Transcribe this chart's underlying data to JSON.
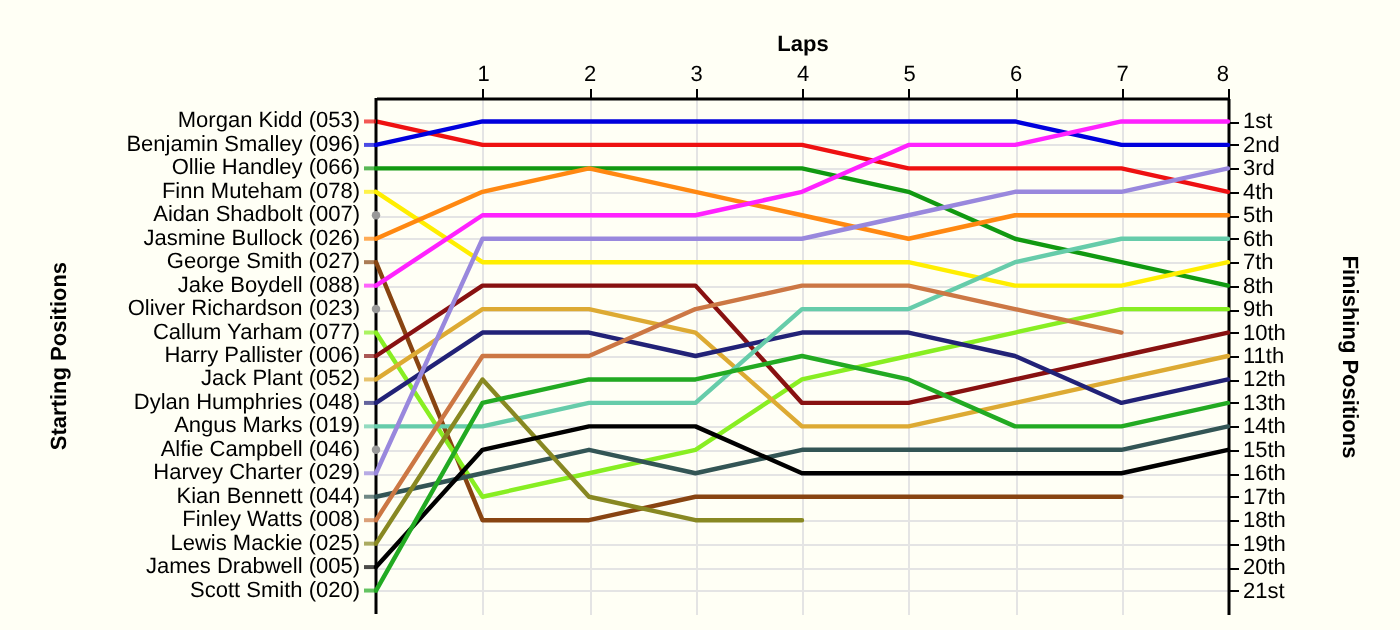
{
  "chart_data": {
    "type": "line",
    "xlabel": "Laps",
    "ylabel": "Finishing Positions",
    "annotations": [
      "Starting Positions"
    ],
    "x": [
      0,
      1,
      2,
      3,
      4,
      5,
      6,
      7,
      8
    ],
    "xlim": [
      0,
      8
    ],
    "xticks": [
      1,
      2,
      3,
      4,
      5,
      6,
      7,
      8
    ],
    "ylim": [
      22,
      0
    ],
    "yticks": [
      {
        "value": 1,
        "label": "1st"
      },
      {
        "value": 2,
        "label": "2nd"
      },
      {
        "value": 3,
        "label": "3rd"
      },
      {
        "value": 4,
        "label": "4th"
      },
      {
        "value": 5,
        "label": "5th"
      },
      {
        "value": 6,
        "label": "6th"
      },
      {
        "value": 7,
        "label": "7th"
      },
      {
        "value": 8,
        "label": "8th"
      },
      {
        "value": 9,
        "label": "9th"
      },
      {
        "value": 10,
        "label": "10th"
      },
      {
        "value": 11,
        "label": "11th"
      },
      {
        "value": 12,
        "label": "12th"
      },
      {
        "value": 13,
        "label": "13th"
      },
      {
        "value": 14,
        "label": "14th"
      },
      {
        "value": 15,
        "label": "15th"
      },
      {
        "value": 16,
        "label": "16th"
      },
      {
        "value": 17,
        "label": "17th"
      },
      {
        "value": 18,
        "label": "18th"
      },
      {
        "value": 19,
        "label": "19th"
      },
      {
        "value": 20,
        "label": "20th"
      },
      {
        "value": 21,
        "label": "21st"
      }
    ],
    "grid": true,
    "legend": "left",
    "series": [
      {
        "name": "Morgan Kidd (053)",
        "color": "#ee1111",
        "values": [
          1,
          2,
          2,
          2,
          2,
          3,
          3,
          3,
          4
        ]
      },
      {
        "name": "Benjamin Smalley (096)",
        "color": "#0000dd",
        "values": [
          2,
          1,
          1,
          1,
          1,
          1,
          1,
          2,
          2
        ]
      },
      {
        "name": "Ollie Handley (066)",
        "color": "#119911",
        "values": [
          3,
          3,
          3,
          3,
          3,
          4,
          6,
          7,
          8
        ]
      },
      {
        "name": "Finn Muteham (078)",
        "color": "#ffee00",
        "values": [
          4,
          7,
          7,
          7,
          7,
          7,
          8,
          8,
          7
        ]
      },
      {
        "name": "Aidan Shadbolt (007)",
        "color": "#999999",
        "marker": "circle",
        "values": [
          5,
          null,
          null,
          null,
          null,
          null,
          null,
          null,
          null
        ]
      },
      {
        "name": "Jasmine Bullock (026)",
        "color": "#ff8811",
        "values": [
          6,
          4,
          3,
          4,
          5,
          6,
          5,
          5,
          5
        ]
      },
      {
        "name": "George Smith (027)",
        "color": "#884411",
        "values": [
          7,
          18,
          18,
          17,
          17,
          17,
          17,
          17,
          null
        ]
      },
      {
        "name": "Jake Boydell (088)",
        "color": "#ff22ff",
        "values": [
          8,
          5,
          5,
          5,
          4,
          2,
          2,
          1,
          1
        ]
      },
      {
        "name": "Oliver Richardson (023)",
        "color": "#999999",
        "marker": "circle",
        "values": [
          9,
          null,
          null,
          null,
          null,
          null,
          null,
          null,
          null
        ]
      },
      {
        "name": "Callum Yarham (077)",
        "color": "#88ee22",
        "values": [
          10,
          17,
          16,
          15,
          12,
          11,
          10,
          9,
          9
        ]
      },
      {
        "name": "Harry Pallister (006)",
        "color": "#881111",
        "values": [
          11,
          8,
          8,
          8,
          13,
          13,
          12,
          11,
          10
        ]
      },
      {
        "name": "Jack Plant (052)",
        "color": "#ddaa33",
        "values": [
          12,
          9,
          9,
          10,
          14,
          14,
          13,
          12,
          11
        ]
      },
      {
        "name": "Dylan Humphries (048)",
        "color": "#222277",
        "values": [
          13,
          10,
          10,
          11,
          10,
          10,
          11,
          13,
          12
        ]
      },
      {
        "name": "Angus Marks (019)",
        "color": "#66ccaa",
        "values": [
          14,
          14,
          13,
          13,
          9,
          9,
          7,
          6,
          6
        ]
      },
      {
        "name": "Alfie Campbell (046)",
        "color": "#999999",
        "marker": "circle",
        "values": [
          15,
          null,
          null,
          null,
          null,
          null,
          null,
          null,
          null
        ]
      },
      {
        "name": "Harvey Charter (029)",
        "color": "#9988dd",
        "values": [
          16,
          6,
          6,
          6,
          6,
          5,
          4,
          4,
          3
        ]
      },
      {
        "name": "Kian Bennett (044)",
        "color": "#335555",
        "values": [
          17,
          16,
          15,
          16,
          15,
          15,
          15,
          15,
          14
        ]
      },
      {
        "name": "Finley Watts (008)",
        "color": "#cc7744",
        "values": [
          18,
          11,
          11,
          9,
          8,
          8,
          9,
          10,
          null
        ]
      },
      {
        "name": "Lewis Mackie (025)",
        "color": "#888822",
        "values": [
          19,
          12,
          17,
          18,
          18,
          null,
          null,
          null,
          null
        ]
      },
      {
        "name": "James Drabwell (005)",
        "color": "#000000",
        "values": [
          20,
          15,
          14,
          14,
          16,
          16,
          16,
          16,
          15
        ]
      },
      {
        "name": "Scott Smith (020)",
        "color": "#22aa22",
        "values": [
          21,
          13,
          12,
          12,
          11,
          12,
          14,
          14,
          13
        ]
      }
    ]
  }
}
